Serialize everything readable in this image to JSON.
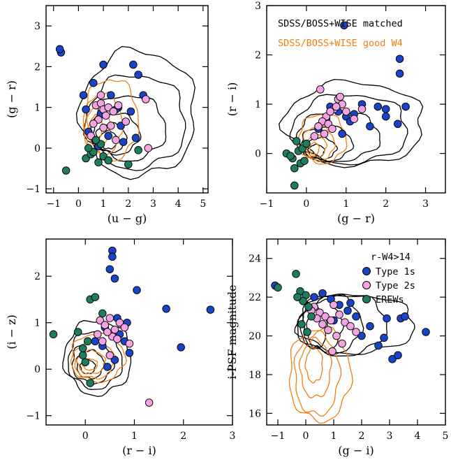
{
  "colors": {
    "matched": "#000000",
    "good_w4": "#f07f12",
    "type1": "#1a44c6",
    "type2": "#f4a3e3",
    "erew": "#1e7d5e"
  },
  "legend_top": {
    "matched": "SDSS/BOSS+WISE matched",
    "good_w4": "SDSS/BOSS+WISE good W4"
  },
  "legend_bottom": {
    "title": "r-W4>14",
    "type1": "Type 1s",
    "type2": "Type 2s",
    "erew": "EREWs"
  },
  "chart_data": [
    {
      "type": "scatter",
      "panel": "top-left",
      "xlabel": "(u − g)",
      "ylabel": "(g − r)",
      "xlim": [
        -1.3,
        5.2
      ],
      "ylim": [
        -1.1,
        3.5
      ],
      "xticks": [
        -1,
        0,
        1,
        2,
        3,
        4,
        5
      ],
      "yticks": [
        -1,
        0,
        1,
        2,
        3
      ],
      "contours": [
        {
          "series": "matched",
          "cx": 1.2,
          "cy": 0.2,
          "rx": 0.35,
          "ry": 0.22
        },
        {
          "series": "matched",
          "cx": 1.3,
          "cy": 0.25,
          "rx": 0.6,
          "ry": 0.35
        },
        {
          "series": "matched",
          "cx": 1.5,
          "cy": 0.35,
          "rx": 0.95,
          "ry": 0.5
        },
        {
          "series": "matched",
          "cx": 2.0,
          "cy": 0.5,
          "rx": 1.5,
          "ry": 0.8
        },
        {
          "series": "matched",
          "cx": 2.3,
          "cy": 0.65,
          "rx": 2.0,
          "ry": 1.15
        },
        {
          "series": "matched",
          "cx": 2.4,
          "cy": 0.85,
          "rx": 2.3,
          "ry": 1.55
        },
        {
          "series": "good_w4",
          "cx": 0.7,
          "cy": 0.5,
          "rx": 0.25,
          "ry": 0.3
        },
        {
          "series": "good_w4",
          "cx": 0.8,
          "cy": 0.55,
          "rx": 0.45,
          "ry": 0.5
        },
        {
          "series": "good_w4",
          "cx": 1.0,
          "cy": 0.6,
          "rx": 0.75,
          "ry": 0.75
        },
        {
          "series": "good_w4",
          "cx": 1.3,
          "cy": 0.7,
          "rx": 1.1,
          "ry": 1.0
        }
      ],
      "series": [
        {
          "name": "Type 1s",
          "key": "type1",
          "x": [
            -0.7,
            -0.75,
            0.2,
            0.3,
            1.6,
            1.8,
            2.2,
            2.4,
            2.6,
            1.0,
            0.6,
            1.3,
            1.5,
            2.3,
            0.9,
            1.7,
            0.4,
            1.2,
            2.1,
            0.8
          ],
          "y": [
            2.35,
            2.43,
            1.3,
            0.95,
            1.0,
            0.15,
            2.05,
            1.8,
            1.3,
            2.05,
            1.6,
            1.3,
            0.95,
            0.25,
            0.85,
            0.55,
            0.4,
            0.3,
            0.9,
            0.05
          ]
        },
        {
          "name": "Type 2s",
          "key": "type2",
          "x": [
            0.7,
            0.9,
            1.0,
            1.1,
            1.2,
            0.8,
            0.6,
            1.4,
            1.6,
            1.3,
            0.5,
            1.9,
            2.8,
            2.7,
            1.0,
            0.9,
            1.5
          ],
          "y": [
            1.05,
            1.1,
            0.95,
            0.8,
            1.0,
            0.7,
            0.6,
            0.9,
            1.05,
            0.55,
            0.3,
            0.65,
            0.0,
            1.2,
            0.5,
            1.3,
            0.2
          ]
        },
        {
          "name": "EREWs",
          "key": "erew",
          "x": [
            -0.5,
            0.3,
            0.5,
            0.6,
            0.9,
            1.0,
            0.7,
            2.0,
            2.4,
            0.4,
            1.2,
            0.8
          ],
          "y": [
            -0.55,
            -0.25,
            -0.15,
            -0.1,
            0.1,
            -0.2,
            0.2,
            -0.4,
            -0.05,
            0.0,
            -0.3,
            -0.35
          ]
        }
      ]
    },
    {
      "type": "scatter",
      "panel": "top-right",
      "xlabel": "(g − r)",
      "ylabel": "(r − i)",
      "xlim": [
        -1.0,
        3.5
      ],
      "ylim": [
        -0.8,
        3.0
      ],
      "xticks": [
        -1,
        0,
        1,
        2,
        3
      ],
      "yticks": [
        0,
        1,
        2,
        3
      ],
      "contours": [
        {
          "series": "matched",
          "cx": 0.25,
          "cy": 0.05,
          "rx": 0.2,
          "ry": 0.13
        },
        {
          "series": "matched",
          "cx": 0.35,
          "cy": 0.1,
          "rx": 0.4,
          "ry": 0.22
        },
        {
          "series": "matched",
          "cx": 0.5,
          "cy": 0.2,
          "rx": 0.65,
          "ry": 0.35
        },
        {
          "series": "matched",
          "cx": 0.8,
          "cy": 0.35,
          "rx": 1.05,
          "ry": 0.5
        },
        {
          "series": "matched",
          "cx": 1.1,
          "cy": 0.5,
          "rx": 1.45,
          "ry": 0.7
        },
        {
          "series": "matched",
          "cx": 1.2,
          "cy": 0.6,
          "rx": 1.75,
          "ry": 0.85
        },
        {
          "series": "good_w4",
          "cx": 0.2,
          "cy": 0.1,
          "rx": 0.12,
          "ry": 0.12
        },
        {
          "series": "good_w4",
          "cx": 0.25,
          "cy": 0.15,
          "rx": 0.25,
          "ry": 0.22
        },
        {
          "series": "good_w4",
          "cx": 0.3,
          "cy": 0.2,
          "rx": 0.4,
          "ry": 0.35
        },
        {
          "series": "good_w4",
          "cx": 0.4,
          "cy": 0.3,
          "rx": 0.6,
          "ry": 0.5
        }
      ],
      "series": [
        {
          "name": "Type 1s",
          "key": "type1",
          "x": [
            0.95,
            2.35,
            2.35,
            2.0,
            1.0,
            1.4,
            1.8,
            2.5,
            2.3,
            0.3,
            0.5,
            0.8,
            1.2,
            1.6,
            2.0,
            0.6,
            0.9,
            1.1
          ],
          "y": [
            2.6,
            1.92,
            1.62,
            0.75,
            0.75,
            1.0,
            0.95,
            0.95,
            0.6,
            0.5,
            0.7,
            0.85,
            0.8,
            0.55,
            0.9,
            0.95,
            0.4,
            0.65
          ]
        },
        {
          "name": "Type 2s",
          "key": "type2",
          "x": [
            0.8,
            0.85,
            0.7,
            0.5,
            0.6,
            0.4,
            0.3,
            0.9,
            1.0,
            1.2,
            0.55,
            0.65,
            0.45,
            0.75,
            0.2,
            0.35,
            1.4
          ],
          "y": [
            1.1,
            1.15,
            0.9,
            0.75,
            0.85,
            0.65,
            0.55,
            1.0,
            0.85,
            0.7,
            0.6,
            0.5,
            0.4,
            0.95,
            0.35,
            1.3,
            0.9
          ]
        },
        {
          "name": "EREWs",
          "key": "erew",
          "x": [
            -0.3,
            -0.5,
            -0.35,
            -0.2,
            -0.1,
            -0.15,
            -0.3,
            -0.05,
            -0.25,
            0.0,
            -0.4
          ],
          "y": [
            -0.65,
            0.0,
            -0.1,
            0.05,
            0.1,
            -0.2,
            -0.3,
            -0.15,
            0.25,
            0.2,
            -0.05
          ]
        }
      ]
    },
    {
      "type": "scatter",
      "panel": "bottom-left",
      "xlabel": "(r − i)",
      "ylabel": "(i − z)",
      "xlim": [
        -0.8,
        3.0
      ],
      "ylim": [
        -1.2,
        2.8
      ],
      "xticks": [
        0,
        1,
        2,
        3
      ],
      "yticks": [
        -1,
        0,
        1,
        2
      ],
      "contours": [
        {
          "series": "matched",
          "cx": 0.05,
          "cy": 0.05,
          "rx": 0.15,
          "ry": 0.15
        },
        {
          "series": "matched",
          "cx": 0.1,
          "cy": 0.1,
          "rx": 0.28,
          "ry": 0.3
        },
        {
          "series": "matched",
          "cx": 0.15,
          "cy": 0.15,
          "rx": 0.42,
          "ry": 0.45
        },
        {
          "series": "matched",
          "cx": 0.2,
          "cy": 0.2,
          "rx": 0.55,
          "ry": 0.62
        },
        {
          "series": "matched",
          "cx": 0.25,
          "cy": 0.25,
          "rx": 0.68,
          "ry": 0.8
        },
        {
          "series": "good_w4",
          "cx": 0.1,
          "cy": 0.1,
          "rx": 0.15,
          "ry": 0.12
        },
        {
          "series": "good_w4",
          "cx": 0.12,
          "cy": 0.15,
          "rx": 0.28,
          "ry": 0.25
        },
        {
          "series": "good_w4",
          "cx": 0.18,
          "cy": 0.2,
          "rx": 0.42,
          "ry": 0.4
        },
        {
          "series": "good_w4",
          "cx": 0.25,
          "cy": 0.25,
          "rx": 0.55,
          "ry": 0.52
        }
      ],
      "series": [
        {
          "name": "Type 1s",
          "key": "type1",
          "x": [
            0.55,
            0.55,
            0.5,
            0.6,
            1.05,
            1.65,
            2.55,
            1.95,
            0.85,
            0.8,
            0.4,
            0.7,
            0.6,
            0.35,
            0.9,
            0.65,
            0.2,
            0.45
          ],
          "y": [
            2.55,
            2.42,
            2.15,
            1.95,
            1.7,
            1.3,
            1.28,
            0.47,
            1.0,
            0.6,
            0.9,
            0.75,
            0.2,
            0.5,
            0.35,
            1.1,
            0.6,
            0.05
          ]
        },
        {
          "name": "Type 2s",
          "key": "type2",
          "x": [
            0.3,
            0.4,
            0.5,
            0.6,
            0.7,
            0.55,
            0.45,
            0.35,
            0.65,
            0.8,
            0.25,
            0.9,
            1.3,
            0.5
          ],
          "y": [
            1.05,
            0.95,
            1.1,
            0.85,
            1.0,
            0.7,
            0.8,
            0.6,
            0.65,
            0.9,
            0.75,
            0.55,
            -0.72,
            0.3
          ]
        },
        {
          "name": "EREWs",
          "key": "erew",
          "x": [
            0.1,
            0.2,
            0.35,
            -0.65,
            -0.05,
            0.0,
            0.1,
            -0.15,
            0.05,
            -0.05
          ],
          "y": [
            1.5,
            1.55,
            1.2,
            0.75,
            0.3,
            0.15,
            -0.3,
            0.8,
            0.6,
            0.45
          ]
        }
      ]
    },
    {
      "type": "scatter",
      "panel": "bottom-right",
      "xlabel": "(g − i)",
      "ylabel": "i-PSF magnitude",
      "xlim": [
        -1.4,
        5.0
      ],
      "ylim": [
        15.4,
        25.0
      ],
      "xticks": [
        -1,
        0,
        1,
        2,
        3,
        4,
        5
      ],
      "yticks": [
        16,
        18,
        20,
        22,
        24
      ],
      "contours": [
        {
          "series": "matched",
          "cx": 0.4,
          "cy": 20.4,
          "rx": 0.35,
          "ry": 1.0
        },
        {
          "series": "matched",
          "cx": 0.6,
          "cy": 20.5,
          "rx": 0.7,
          "ry": 1.3
        },
        {
          "series": "matched",
          "cx": 0.9,
          "cy": 20.6,
          "rx": 1.1,
          "ry": 1.5
        },
        {
          "series": "matched",
          "cx": 1.3,
          "cy": 20.6,
          "rx": 1.6,
          "ry": 1.6
        },
        {
          "series": "matched",
          "cx": 1.8,
          "cy": 20.6,
          "rx": 2.1,
          "ry": 1.5
        },
        {
          "series": "good_w4",
          "cx": 0.3,
          "cy": 18.5,
          "rx": 0.3,
          "ry": 0.9
        },
        {
          "series": "good_w4",
          "cx": 0.35,
          "cy": 18.3,
          "rx": 0.55,
          "ry": 1.5
        },
        {
          "series": "good_w4",
          "cx": 0.4,
          "cy": 18.0,
          "rx": 0.8,
          "ry": 2.1
        },
        {
          "series": "good_w4",
          "cx": 0.5,
          "cy": 18.0,
          "rx": 1.1,
          "ry": 2.4
        }
      ],
      "series": [
        {
          "name": "Type 1s",
          "key": "type1",
          "x": [
            -1.1,
            3.4,
            3.55,
            4.3,
            2.9,
            2.3,
            1.8,
            1.5,
            1.2,
            0.9,
            0.6,
            2.6,
            3.1,
            2.0,
            1.0,
            0.3,
            2.8,
            1.6,
            3.3
          ],
          "y": [
            22.6,
            20.9,
            21.0,
            20.2,
            20.9,
            20.5,
            21.0,
            21.3,
            21.6,
            21.9,
            22.2,
            19.5,
            18.8,
            20.0,
            20.8,
            22.0,
            19.9,
            21.7,
            19.0
          ]
        },
        {
          "name": "Type 2s",
          "key": "type2",
          "x": [
            0.3,
            0.5,
            0.7,
            0.9,
            1.0,
            1.2,
            0.6,
            0.8,
            1.4,
            1.6,
            1.1,
            0.4,
            0.2,
            1.3,
            1.8,
            0.95
          ],
          "y": [
            21.5,
            21.2,
            21.0,
            20.8,
            21.6,
            21.1,
            20.6,
            20.3,
            20.7,
            20.5,
            20.0,
            20.9,
            21.3,
            19.6,
            20.2,
            19.2
          ]
        },
        {
          "name": "EREWs",
          "key": "erew",
          "x": [
            -0.35,
            -0.2,
            0.0,
            0.1,
            -0.1,
            -0.3,
            0.2,
            -1.0,
            -0.15,
            0.05
          ],
          "y": [
            23.2,
            22.3,
            22.1,
            21.5,
            21.8,
            22.0,
            21.0,
            22.5,
            20.6,
            20.2
          ]
        }
      ]
    }
  ]
}
